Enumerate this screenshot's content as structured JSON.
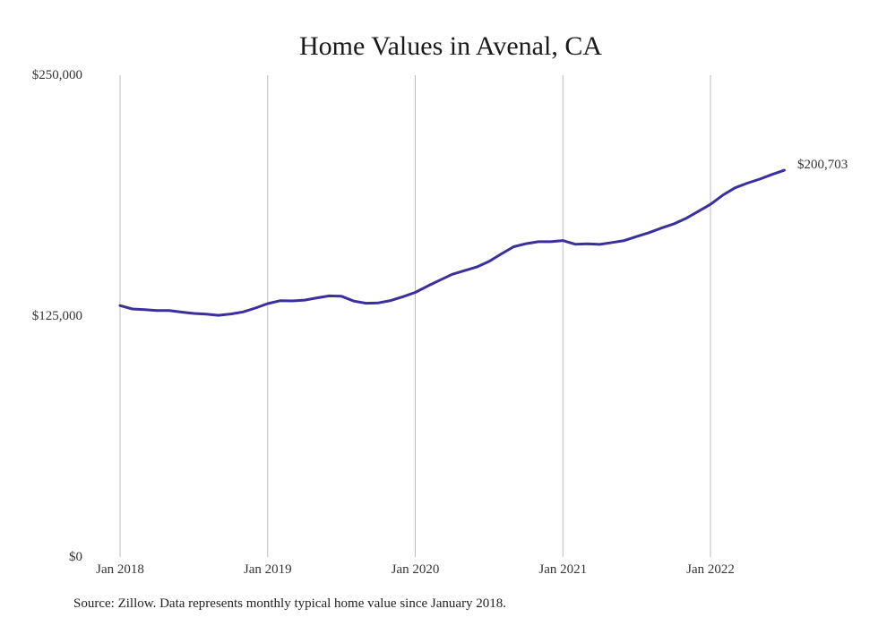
{
  "chart_data": {
    "type": "line",
    "title": "Home Values in Avenal, CA",
    "xlabel": "",
    "ylabel": "",
    "ylim": [
      0,
      250000
    ],
    "yticks": [
      0,
      125000,
      250000
    ],
    "ytick_labels": [
      "$0",
      "$125,000",
      "$250,000"
    ],
    "xticks": [
      "2018-01",
      "2019-01",
      "2020-01",
      "2021-01",
      "2022-01"
    ],
    "xtick_labels": [
      "Jan 2018",
      "Jan 2019",
      "Jan 2020",
      "Jan 2021",
      "Jan 2022"
    ],
    "grid": "vertical lines at each January",
    "legend": "none",
    "end_label": "$200,703",
    "line_color": "#3a2f9e",
    "series": [
      {
        "x": [
          "2018-01",
          "2018-02",
          "2018-03",
          "2018-04",
          "2018-05",
          "2018-06",
          "2018-07",
          "2018-08",
          "2018-09",
          "2018-10",
          "2018-11",
          "2018-12",
          "2019-01",
          "2019-02",
          "2019-03",
          "2019-04",
          "2019-05",
          "2019-06",
          "2019-07",
          "2019-08",
          "2019-09",
          "2019-10",
          "2019-11",
          "2019-12",
          "2020-01",
          "2020-02",
          "2020-03",
          "2020-04",
          "2020-05",
          "2020-06",
          "2020-07",
          "2020-08",
          "2020-09",
          "2020-10",
          "2020-11",
          "2020-12",
          "2021-01",
          "2021-02",
          "2021-03",
          "2021-04",
          "2021-05",
          "2021-06",
          "2021-07",
          "2021-08",
          "2021-09",
          "2021-10",
          "2021-11",
          "2021-12",
          "2022-01",
          "2022-02",
          "2022-03",
          "2022-04",
          "2022-05",
          "2022-06",
          "2022-07"
        ],
        "values": [
          130500,
          128700,
          128400,
          127900,
          127900,
          127100,
          126400,
          126000,
          125400,
          126100,
          127200,
          129200,
          131500,
          133000,
          132900,
          133300,
          134500,
          135500,
          135300,
          132800,
          131700,
          131900,
          133100,
          135100,
          137300,
          140600,
          143700,
          146700,
          148600,
          150500,
          153400,
          157300,
          161000,
          162600,
          163600,
          163600,
          164200,
          162300,
          162500,
          162200,
          163200,
          164200,
          166300,
          168300,
          170700,
          172800,
          175700,
          179300,
          183000,
          187800,
          191600,
          194000,
          196100,
          198500,
          200703
        ]
      }
    ]
  },
  "source": "Source: Zillow. Data represents monthly typical home value since January 2018."
}
